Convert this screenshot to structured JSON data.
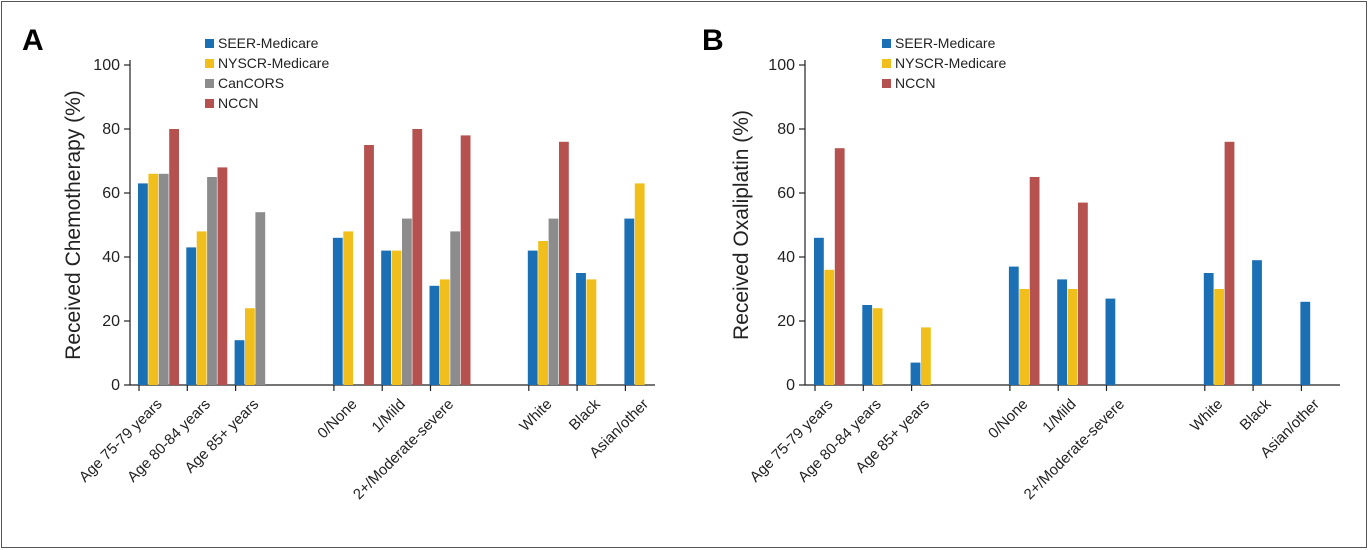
{
  "chart_data": [
    {
      "type": "bar",
      "panel": "A",
      "ylabel": "Received Chemotherapy (%)",
      "ylim": [
        0,
        100
      ],
      "yticks": [
        0,
        20,
        40,
        60,
        80,
        100
      ],
      "groups": [
        [
          "Age 75-79 years",
          "Age 80-84 years",
          "Age 85+ years"
        ],
        [
          "0/None",
          "1/Mild",
          "2+/Moderate-severe"
        ],
        [
          "White",
          "Black",
          "Asian/other"
        ]
      ],
      "categories": [
        "Age 75-79 years",
        "Age 80-84 years",
        "Age 85+ years",
        "0/None",
        "1/Mild",
        "2+/Moderate-severe",
        "White",
        "Black",
        "Asian/other"
      ],
      "series": [
        {
          "name": "SEER-Medicare",
          "color": "#1a6fb5",
          "values": [
            63,
            43,
            14,
            46,
            42,
            31,
            42,
            35,
            52
          ]
        },
        {
          "name": "NYSCR-Medicare",
          "color": "#f0bf1c",
          "values": [
            66,
            48,
            24,
            48,
            42,
            33,
            45,
            33,
            63
          ]
        },
        {
          "name": "CanCORS",
          "color": "#8c8c8c",
          "values": [
            66,
            65,
            54,
            null,
            52,
            48,
            52,
            null,
            null
          ]
        },
        {
          "name": "NCCN",
          "color": "#b5514f",
          "values": [
            80,
            68,
            null,
            75,
            80,
            78,
            76,
            null,
            null
          ]
        }
      ],
      "legend": "top-left"
    },
    {
      "type": "bar",
      "panel": "B",
      "ylabel": "Received Oxaliplatin (%)",
      "ylim": [
        0,
        100
      ],
      "yticks": [
        0,
        20,
        40,
        60,
        80,
        100
      ],
      "groups": [
        [
          "Age 75-79 years",
          "Age 80-84 years",
          "Age 85+ years"
        ],
        [
          "0/None",
          "1/Mild",
          "2+/Moderate-severe"
        ],
        [
          "White",
          "Black",
          "Asian/other"
        ]
      ],
      "categories": [
        "Age 75-79 years",
        "Age 80-84 years",
        "Age 85+ years",
        "0/None",
        "1/Mild",
        "2+/Moderate-severe",
        "White",
        "Black",
        "Asian/other"
      ],
      "series": [
        {
          "name": "SEER-Medicare",
          "color": "#1a6fb5",
          "values": [
            46,
            25,
            7,
            37,
            33,
            27,
            35,
            39,
            26
          ]
        },
        {
          "name": "NYSCR-Medicare",
          "color": "#f0bf1c",
          "values": [
            36,
            24,
            18,
            30,
            30,
            null,
            30,
            null,
            null
          ]
        },
        {
          "name": "NCCN",
          "color": "#b5514f",
          "values": [
            74,
            null,
            null,
            65,
            57,
            null,
            76,
            null,
            null
          ]
        }
      ],
      "legend": "top-left"
    }
  ]
}
